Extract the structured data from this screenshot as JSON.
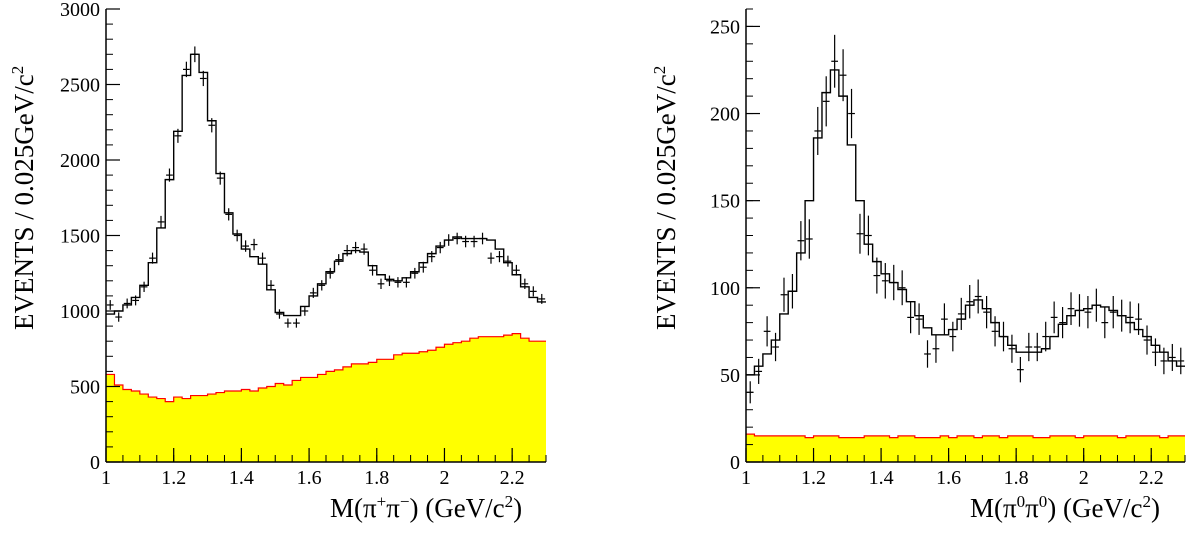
{
  "chart_data": [
    {
      "type": "bar",
      "panel": "left",
      "xlabel_text": "M(π",
      "xlabel_sup1": "+",
      "xlabel_mid": "π",
      "xlabel_sup2": "−",
      "xlabel_tail": ") (GeV/c",
      "xlabel_sup3": "2",
      "xlabel_end": ")",
      "ylabel_text": "EVENTS / 0.025GeV/c",
      "ylabel_sup": "2",
      "xlim": [
        1.0,
        2.3
      ],
      "ylim": [
        0,
        3000
      ],
      "xticks": [
        "1",
        "1.2",
        "1.4",
        "1.6",
        "1.8",
        "2",
        "2.2"
      ],
      "xtick_values": [
        1.0,
        1.2,
        1.4,
        1.6,
        1.8,
        2.0,
        2.2
      ],
      "yticks": [
        "0",
        "500",
        "1000",
        "1500",
        "2000",
        "2500",
        "3000"
      ],
      "ytick_values": [
        0,
        500,
        1000,
        1500,
        2000,
        2500,
        3000
      ],
      "bin_width": 0.025,
      "bin_start": 1.0,
      "series": [
        {
          "style": "data-points-with-errors",
          "values": [
            1040,
            960,
            1050,
            1070,
            1160,
            1350,
            1590,
            1900,
            2160,
            2600,
            2700,
            2540,
            2230,
            1880,
            1640,
            1500,
            1430,
            1440,
            1350,
            1170,
            980,
            920,
            920,
            1000,
            1120,
            1170,
            1250,
            1340,
            1400,
            1420,
            1410,
            1270,
            1180,
            1200,
            1190,
            1190,
            1250,
            1290,
            1360,
            1420,
            1470,
            1480,
            1460,
            1460,
            1480,
            1350,
            1360,
            1330,
            1270,
            1180,
            1130,
            1080
          ]
        },
        {
          "style": "fit-histogram",
          "values": [
            980,
            1000,
            1040,
            1090,
            1170,
            1320,
            1550,
            1870,
            2190,
            2560,
            2700,
            2580,
            2260,
            1910,
            1650,
            1510,
            1410,
            1360,
            1310,
            1140,
            990,
            970,
            970,
            1030,
            1100,
            1180,
            1260,
            1330,
            1380,
            1400,
            1390,
            1300,
            1240,
            1210,
            1200,
            1220,
            1260,
            1320,
            1380,
            1430,
            1470,
            1490,
            1480,
            1480,
            1480,
            1470,
            1410,
            1320,
            1240,
            1160,
            1090,
            1060
          ]
        },
        {
          "style": "background-filled",
          "fill": "#ffff00",
          "stroke": "#ff0000",
          "values": [
            580,
            510,
            480,
            470,
            450,
            430,
            420,
            400,
            430,
            420,
            440,
            440,
            450,
            460,
            470,
            470,
            480,
            470,
            490,
            500,
            520,
            510,
            540,
            560,
            560,
            580,
            600,
            610,
            630,
            650,
            650,
            660,
            680,
            680,
            710,
            720,
            720,
            730,
            740,
            760,
            780,
            790,
            800,
            820,
            830,
            830,
            830,
            840,
            850,
            820,
            800,
            800
          ]
        }
      ]
    },
    {
      "type": "bar",
      "panel": "right",
      "xlabel_text": "M(π",
      "xlabel_sup1": "0",
      "xlabel_mid": "π",
      "xlabel_sup2": "0",
      "xlabel_tail": ") (GeV/c",
      "xlabel_sup3": "2",
      "xlabel_end": ")",
      "ylabel_text": "EVENTS / 0.025GeV/c",
      "ylabel_sup": "2",
      "xlim": [
        1.0,
        2.3
      ],
      "ylim": [
        0,
        260
      ],
      "xticks": [
        "1",
        "1.2",
        "1.4",
        "1.6",
        "1.8",
        "2",
        "2.2"
      ],
      "xtick_values": [
        1.0,
        1.2,
        1.4,
        1.6,
        1.8,
        2.0,
        2.2
      ],
      "yticks": [
        "0",
        "50",
        "100",
        "150",
        "200",
        "250"
      ],
      "ytick_values": [
        0,
        50,
        100,
        150,
        200,
        250
      ],
      "bin_width": 0.025,
      "bin_start": 1.0,
      "series": [
        {
          "style": "data-points-with-errors",
          "values": [
            40,
            52,
            75,
            66,
            96,
            98,
            127,
            128,
            190,
            207,
            230,
            222,
            200,
            131,
            130,
            107,
            104,
            103,
            100,
            83,
            82,
            62,
            65,
            82,
            72,
            85,
            92,
            95,
            86,
            75,
            72,
            65,
            53,
            66,
            66,
            72,
            83,
            80,
            88,
            87,
            86,
            90,
            80,
            86,
            84,
            83,
            82,
            70,
            63,
            58,
            60,
            58
          ]
        },
        {
          "style": "fit-histogram",
          "values": [
            50,
            55,
            62,
            70,
            85,
            98,
            120,
            150,
            186,
            212,
            225,
            210,
            182,
            150,
            125,
            115,
            108,
            103,
            99,
            92,
            84,
            77,
            73,
            73,
            76,
            82,
            90,
            93,
            88,
            80,
            72,
            67,
            63,
            63,
            63,
            65,
            72,
            79,
            84,
            87,
            88,
            90,
            89,
            87,
            84,
            80,
            76,
            72,
            67,
            63,
            58,
            55
          ]
        },
        {
          "style": "background-filled",
          "fill": "#ffff00",
          "stroke": "#ff0000",
          "values": [
            16,
            15,
            15,
            15,
            15,
            15,
            15,
            14,
            15,
            15,
            15,
            14,
            14,
            14,
            15,
            15,
            15,
            14,
            15,
            15,
            14,
            14,
            14,
            15,
            14,
            15,
            15,
            14,
            15,
            15,
            14,
            15,
            15,
            15,
            14,
            14,
            15,
            15,
            15,
            14,
            15,
            15,
            15,
            15,
            14,
            15,
            15,
            15,
            15,
            14,
            15,
            15
          ]
        }
      ]
    }
  ]
}
